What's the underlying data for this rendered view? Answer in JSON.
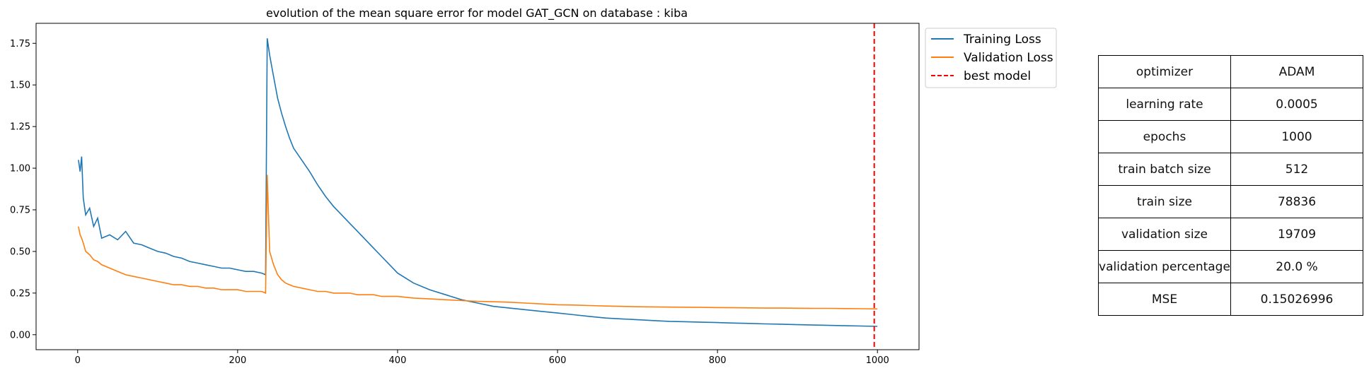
{
  "chart_data": {
    "type": "line",
    "title": "evolution of the mean square error for model GAT_GCN on database : kiba",
    "xlabel": "",
    "ylabel": "",
    "xlim": [
      -52,
      1052
    ],
    "ylim": [
      -0.09,
      1.87
    ],
    "x_ticks": [
      0,
      200,
      400,
      600,
      800,
      1000
    ],
    "y_ticks": [
      0.0,
      0.25,
      0.5,
      0.75,
      1.0,
      1.25,
      1.5,
      1.75
    ],
    "legend_position": "outside-top-right",
    "series": [
      {
        "name": "Training Loss",
        "color": "#1f77b4",
        "x": [
          1,
          3,
          5,
          7,
          10,
          15,
          20,
          25,
          30,
          40,
          50,
          60,
          70,
          80,
          90,
          100,
          110,
          120,
          130,
          140,
          150,
          160,
          170,
          180,
          190,
          200,
          210,
          220,
          230,
          235,
          237,
          240,
          245,
          250,
          255,
          260,
          265,
          270,
          280,
          290,
          300,
          310,
          320,
          330,
          340,
          350,
          360,
          370,
          380,
          390,
          400,
          420,
          440,
          460,
          480,
          500,
          520,
          540,
          560,
          580,
          600,
          620,
          640,
          660,
          680,
          700,
          720,
          740,
          760,
          780,
          800,
          820,
          840,
          860,
          880,
          900,
          920,
          940,
          960,
          980,
          1000
        ],
        "values": [
          1.05,
          0.98,
          1.07,
          0.82,
          0.72,
          0.76,
          0.65,
          0.7,
          0.58,
          0.6,
          0.57,
          0.62,
          0.55,
          0.54,
          0.52,
          0.5,
          0.49,
          0.47,
          0.46,
          0.44,
          0.43,
          0.42,
          0.41,
          0.4,
          0.4,
          0.39,
          0.38,
          0.38,
          0.37,
          0.36,
          1.78,
          1.68,
          1.55,
          1.42,
          1.33,
          1.25,
          1.18,
          1.12,
          1.05,
          0.98,
          0.9,
          0.83,
          0.77,
          0.72,
          0.67,
          0.62,
          0.57,
          0.52,
          0.47,
          0.42,
          0.37,
          0.31,
          0.27,
          0.24,
          0.21,
          0.19,
          0.17,
          0.16,
          0.15,
          0.14,
          0.13,
          0.12,
          0.11,
          0.1,
          0.095,
          0.09,
          0.085,
          0.08,
          0.078,
          0.075,
          0.073,
          0.07,
          0.068,
          0.065,
          0.063,
          0.06,
          0.058,
          0.056,
          0.054,
          0.052,
          0.05
        ]
      },
      {
        "name": "Validation Loss",
        "color": "#ff7f0e",
        "x": [
          1,
          3,
          5,
          7,
          10,
          15,
          20,
          25,
          30,
          40,
          50,
          60,
          70,
          80,
          90,
          100,
          110,
          120,
          130,
          140,
          150,
          160,
          170,
          180,
          190,
          200,
          210,
          220,
          230,
          235,
          237,
          240,
          245,
          250,
          255,
          260,
          265,
          270,
          280,
          290,
          300,
          310,
          320,
          330,
          340,
          350,
          360,
          370,
          380,
          390,
          400,
          420,
          440,
          460,
          480,
          500,
          520,
          540,
          560,
          580,
          600,
          620,
          640,
          660,
          680,
          700,
          720,
          740,
          760,
          780,
          800,
          820,
          840,
          860,
          880,
          900,
          920,
          940,
          960,
          980,
          1000
        ],
        "values": [
          0.65,
          0.6,
          0.58,
          0.55,
          0.5,
          0.48,
          0.45,
          0.44,
          0.42,
          0.4,
          0.38,
          0.36,
          0.35,
          0.34,
          0.33,
          0.32,
          0.31,
          0.3,
          0.3,
          0.29,
          0.29,
          0.28,
          0.28,
          0.27,
          0.27,
          0.27,
          0.26,
          0.26,
          0.26,
          0.25,
          0.96,
          0.5,
          0.42,
          0.36,
          0.33,
          0.31,
          0.3,
          0.29,
          0.28,
          0.27,
          0.26,
          0.26,
          0.25,
          0.25,
          0.25,
          0.24,
          0.24,
          0.24,
          0.23,
          0.23,
          0.23,
          0.22,
          0.215,
          0.21,
          0.205,
          0.2,
          0.198,
          0.195,
          0.19,
          0.185,
          0.18,
          0.178,
          0.175,
          0.172,
          0.17,
          0.168,
          0.167,
          0.166,
          0.165,
          0.164,
          0.163,
          0.162,
          0.161,
          0.16,
          0.16,
          0.159,
          0.158,
          0.158,
          0.157,
          0.156,
          0.155
        ]
      },
      {
        "name": "best model",
        "color": "#ff0000",
        "line_style": "dashed",
        "vertical_line_x": 996
      }
    ]
  },
  "table": {
    "rows": [
      {
        "label": "optimizer",
        "value": "ADAM"
      },
      {
        "label": "learning rate",
        "value": "0.0005"
      },
      {
        "label": "epochs",
        "value": "1000"
      },
      {
        "label": "train batch size",
        "value": "512"
      },
      {
        "label": "train size",
        "value": "78836"
      },
      {
        "label": "validation size",
        "value": "19709"
      },
      {
        "label": "validation percentage",
        "value": "20.0 %"
      },
      {
        "label": "MSE",
        "value": "0.15026996"
      }
    ]
  }
}
